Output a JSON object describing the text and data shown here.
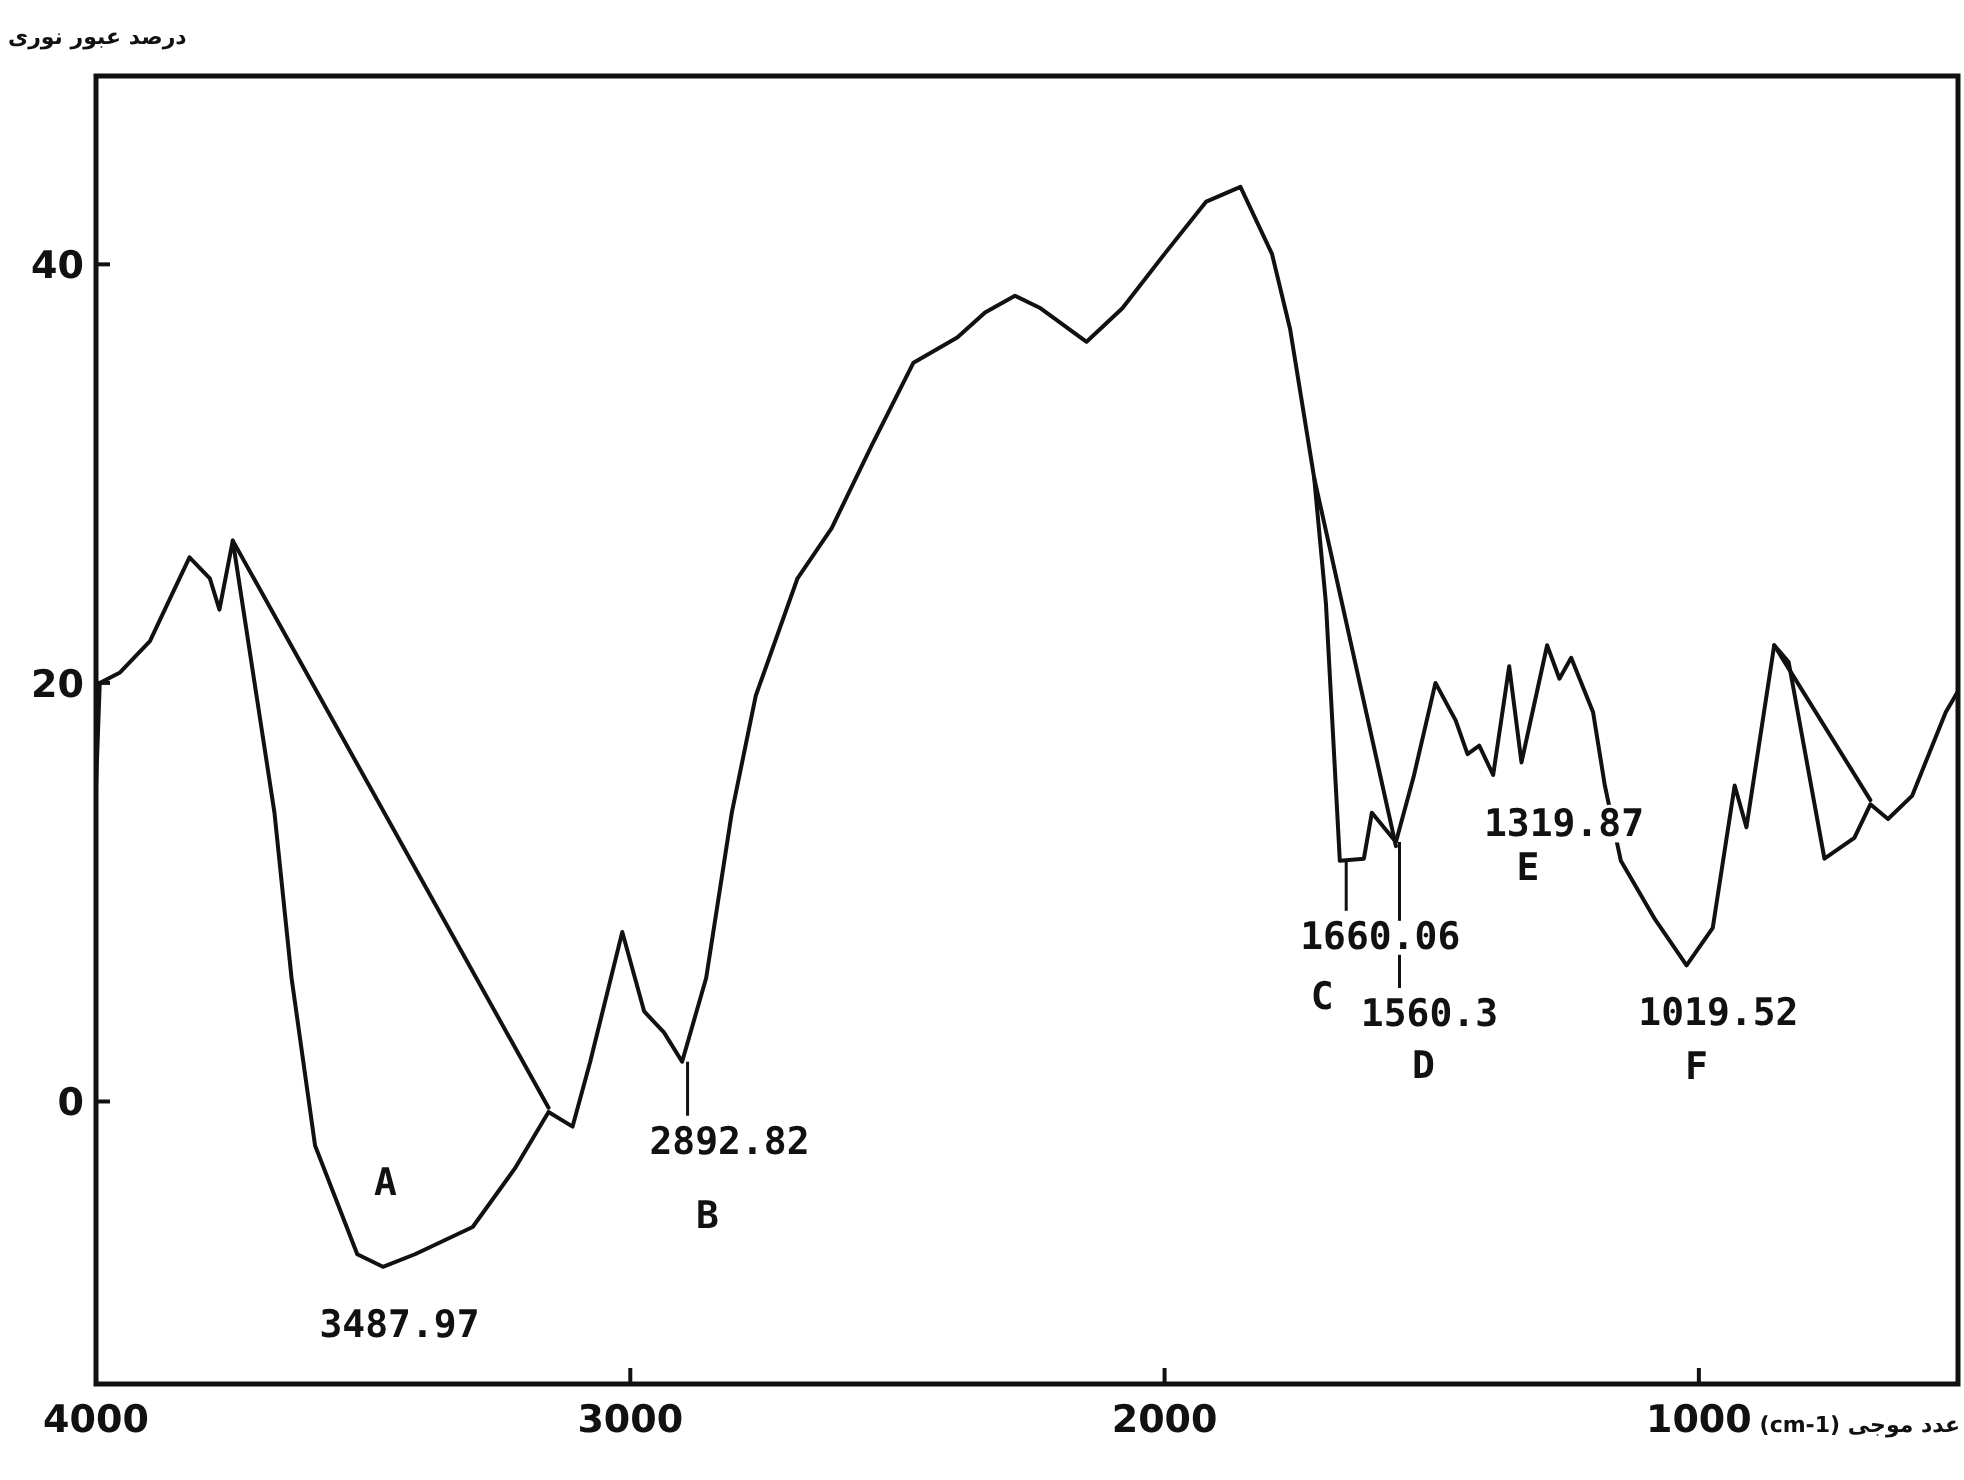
{
  "chart_data": {
    "type": "line",
    "ylabel": "درصد عبور نوری",
    "xlabel": "عدد موجی (cm-1)",
    "xlim": [
      4000,
      515
    ],
    "ylim": [
      -13.5,
      49
    ],
    "xticks": [
      4000,
      3000,
      2000,
      1000
    ],
    "yticks": [
      0,
      20,
      40
    ],
    "grid": false,
    "marker": "none",
    "line_style": "solid",
    "series": [
      {
        "type": "line",
        "color": "#111111",
        "x": [
          4000,
          3993,
          3955,
          3899,
          3862,
          3825,
          3787,
          3769,
          3744,
          3666,
          3634,
          3590,
          3511,
          3463,
          3403,
          3295,
          3216,
          3153,
          3108,
          3075,
          3015,
          2974,
          2937,
          2903,
          2858,
          2810,
          2765,
          2687,
          2623,
          2549,
          2470,
          2388,
          2336,
          2280,
          2232,
          2146,
          2079,
          2000,
          1922,
          1858,
          1799,
          1765,
          1720,
          1698,
          1672,
          1627,
          1612,
          1567,
          1534,
          1493,
          1455,
          1433,
          1411,
          1385,
          1355,
          1332,
          1284,
          1261,
          1239,
          1198,
          1176,
          1146,
          1082,
          1023,
          974,
          933,
          911,
          859,
          832,
          765,
          709,
          679,
          646,
          601,
          538,
          515
        ],
        "values": [
          15,
          20,
          20.5,
          22,
          24,
          26,
          25,
          23.5,
          26.8,
          13.8,
          5.9,
          -2.1,
          -7.3,
          -7.9,
          -7.3,
          -6,
          -3.2,
          -0.5,
          -1.2,
          1.9,
          8.1,
          4.3,
          3.3,
          1.9,
          5.9,
          13.8,
          19.4,
          25,
          27.4,
          31.3,
          35.3,
          36.5,
          37.7,
          38.5,
          37.9,
          36.3,
          37.9,
          40.5,
          43,
          43.7,
          40.5,
          36.9,
          29.8,
          23.8,
          11.5,
          11.6,
          13.8,
          12.4,
          15.5,
          20,
          18.2,
          16.6,
          17,
          15.6,
          20.8,
          16.2,
          21.8,
          20.2,
          21.2,
          18.6,
          15.1,
          11.5,
          8.7,
          6.5,
          8.3,
          15.1,
          13.1,
          21.8,
          21,
          11.6,
          12.6,
          14.2,
          13.5,
          14.6,
          18.6,
          19.6
        ]
      },
      {
        "type": "line",
        "color": "#111111",
        "x": [
          3744,
          3153
        ],
        "values": [
          26.8,
          -0.3
        ]
      },
      {
        "type": "line",
        "color": "#111111",
        "x": [
          1720,
          1567
        ],
        "values": [
          29.8,
          12.2
        ]
      },
      {
        "type": "line",
        "color": "#111111",
        "x": [
          859,
          679
        ],
        "values": [
          21.8,
          14.4
        ]
      }
    ],
    "annotations": [
      "A",
      {
        "text": "3487.97",
        "x": 3487.97,
        "y": -7.9
      },
      {
        "text": "2892.82",
        "x": 2892.82,
        "y": 1.9
      },
      "B",
      {
        "text": "1660.06",
        "x": 1660.06,
        "y": 11.5
      },
      "C",
      {
        "text": "1560.3",
        "x": 1560.3,
        "y": 12.4
      },
      "D",
      {
        "text": "1319.87",
        "x": 1319.87,
        "y": 16.2
      },
      "E",
      {
        "text": "1019.52",
        "x": 1019.52,
        "y": 6.5
      },
      "F"
    ]
  }
}
